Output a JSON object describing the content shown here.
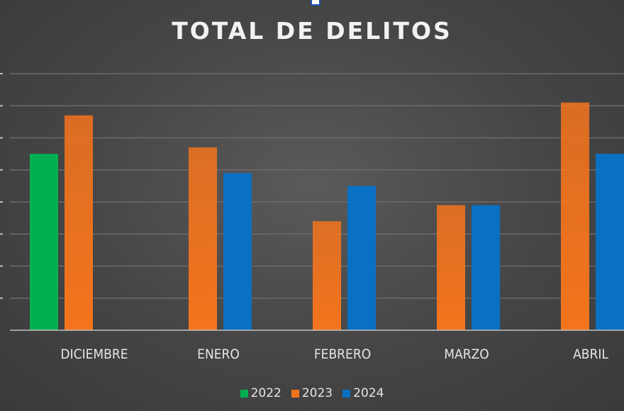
{
  "colors": {
    "series_2022": "#00b050",
    "series_2023": "#f4741d",
    "series_2024": "#0a70c4",
    "gridline": "#6b6b6b",
    "baseline": "#bfbfbf"
  },
  "chart_data": {
    "type": "bar",
    "title": "TOTAL DE DELITOS",
    "xlabel": "",
    "ylabel": "",
    "categories": [
      "DICIEMBRE",
      "ENERO",
      "FEBRERO",
      "MARZO",
      "ABRIL"
    ],
    "series": [
      {
        "name": "2022",
        "color": "#00b050",
        "values": [
          5.5,
          null,
          null,
          null,
          null
        ]
      },
      {
        "name": "2023",
        "color": "#f4741d",
        "values": [
          6.7,
          5.7,
          3.4,
          3.9,
          7.1
        ]
      },
      {
        "name": "2024",
        "color": "#0a70c4",
        "values": [
          null,
          4.9,
          4.5,
          3.9,
          5.5
        ]
      }
    ],
    "ylim": [
      0,
      8
    ],
    "grid": true,
    "legend": "bottom"
  }
}
